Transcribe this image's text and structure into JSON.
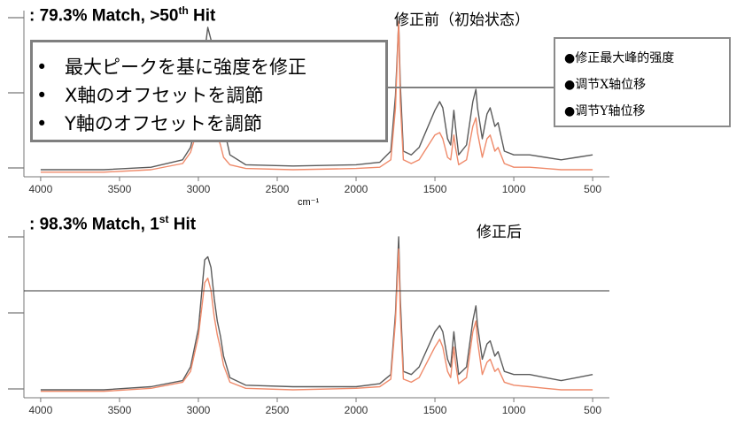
{
  "texts": {
    "top_title": ": 79.3% Match,  >50",
    "top_title_sup": "th",
    "top_title_end": " Hit",
    "bottom_title": ":  98.3% Match, 1",
    "bottom_title_sup": "st",
    "bottom_title_end": " Hit",
    "label_before": "修正前（初始状态）",
    "label_after": "修正后",
    "unit": "cm⁻¹",
    "bullet_symbol": "•",
    "box_ja": [
      "最大ピークを基に強度を修正",
      "X軸のオフセットを調節",
      "Y軸のオフセットを調節"
    ],
    "box_cn": [
      "●修正最大峰的强度",
      "●调节X轴位移",
      "●调节Y轴位移"
    ]
  },
  "colors": {
    "reference_spectrum": "#5b5b5b",
    "sample_spectrum": "#ef8a6a",
    "axis": "#777777",
    "box_border": "#7f7f7f"
  },
  "chart_data": [
    {
      "type": "line",
      "title": ": 79.3% Match,  >50th Hit",
      "xlabel": "cm⁻¹",
      "x_reversed": true,
      "xlim": [
        4050,
        450
      ],
      "xticks": [
        4000,
        3500,
        3000,
        2500,
        2000,
        1500,
        1000,
        500
      ],
      "series": [
        {
          "color": "#5b5b5b",
          "x": [
            4000,
            3600,
            3300,
            3100,
            3050,
            3000,
            2960,
            2940,
            2920,
            2900,
            2880,
            2860,
            2840,
            2800,
            2700,
            2400,
            2000,
            1850,
            1780,
            1750,
            1730,
            1720,
            1700,
            1650,
            1600,
            1500,
            1470,
            1450,
            1420,
            1400,
            1380,
            1370,
            1350,
            1300,
            1260,
            1240,
            1230,
            1200,
            1170,
            1150,
            1120,
            1100,
            1060,
            1000,
            900,
            800,
            700,
            600,
            500
          ],
          "y": [
            0.0,
            0.0,
            0.02,
            0.08,
            0.18,
            0.45,
            0.95,
            1.15,
            1.05,
            0.8,
            0.62,
            0.55,
            0.35,
            0.12,
            0.04,
            0.03,
            0.04,
            0.06,
            0.15,
            0.6,
            1.2,
            0.7,
            0.15,
            0.12,
            0.18,
            0.48,
            0.55,
            0.5,
            0.25,
            0.2,
            0.48,
            0.35,
            0.12,
            0.2,
            0.55,
            0.65,
            0.5,
            0.25,
            0.45,
            0.5,
            0.35,
            0.38,
            0.15,
            0.12,
            0.12,
            0.1,
            0.08,
            0.1,
            0.12
          ]
        },
        {
          "color": "#ef8a6a",
          "x": [
            4000,
            3600,
            3300,
            3100,
            3050,
            3000,
            2960,
            2940,
            2920,
            2900,
            2880,
            2860,
            2840,
            2800,
            2700,
            2400,
            2000,
            1850,
            1780,
            1750,
            1730,
            1720,
            1700,
            1650,
            1600,
            1500,
            1470,
            1450,
            1420,
            1400,
            1380,
            1370,
            1350,
            1300,
            1260,
            1240,
            1230,
            1200,
            1170,
            1150,
            1120,
            1100,
            1060,
            1000,
            900,
            800,
            700,
            600,
            500
          ],
          "y": [
            -0.02,
            -0.02,
            0.0,
            0.05,
            0.14,
            0.35,
            0.5,
            0.55,
            0.52,
            0.38,
            0.28,
            0.2,
            0.1,
            0.04,
            0.01,
            0.0,
            0.01,
            0.02,
            0.08,
            0.5,
            1.2,
            0.55,
            0.08,
            0.05,
            0.08,
            0.28,
            0.3,
            0.25,
            0.1,
            0.08,
            0.28,
            0.18,
            0.04,
            0.08,
            0.35,
            0.42,
            0.3,
            0.1,
            0.25,
            0.28,
            0.15,
            0.18,
            0.05,
            0.02,
            0.02,
            0.01,
            0.0,
            0.0,
            0.0
          ]
        }
      ]
    },
    {
      "type": "line",
      "title": ":  98.3% Match, 1st Hit",
      "x_reversed": true,
      "xlim": [
        4050,
        450
      ],
      "xticks": [
        4000,
        3500,
        3000,
        2500,
        2000,
        1500,
        1000,
        500
      ],
      "series": [
        {
          "color": "#5b5b5b",
          "x": [
            4000,
            3600,
            3300,
            3100,
            3050,
            3000,
            2960,
            2940,
            2920,
            2900,
            2880,
            2860,
            2840,
            2800,
            2700,
            2400,
            2000,
            1850,
            1780,
            1750,
            1730,
            1720,
            1700,
            1650,
            1600,
            1500,
            1470,
            1450,
            1420,
            1400,
            1380,
            1370,
            1350,
            1300,
            1260,
            1240,
            1230,
            1200,
            1170,
            1150,
            1120,
            1100,
            1060,
            1000,
            900,
            800,
            700,
            600,
            500
          ],
          "y": [
            0.0,
            0.0,
            0.02,
            0.06,
            0.15,
            0.4,
            0.85,
            0.87,
            0.8,
            0.6,
            0.45,
            0.35,
            0.22,
            0.08,
            0.03,
            0.02,
            0.02,
            0.04,
            0.1,
            0.5,
            1.0,
            0.6,
            0.12,
            0.1,
            0.15,
            0.38,
            0.42,
            0.38,
            0.2,
            0.15,
            0.38,
            0.28,
            0.1,
            0.15,
            0.45,
            0.55,
            0.42,
            0.2,
            0.3,
            0.32,
            0.22,
            0.25,
            0.12,
            0.1,
            0.1,
            0.08,
            0.06,
            0.08,
            0.1
          ]
        },
        {
          "color": "#ef8a6a",
          "x": [
            4000,
            3600,
            3300,
            3100,
            3050,
            3000,
            2960,
            2940,
            2920,
            2900,
            2880,
            2860,
            2840,
            2800,
            2700,
            2400,
            2000,
            1850,
            1780,
            1750,
            1730,
            1720,
            1700,
            1650,
            1600,
            1500,
            1470,
            1450,
            1420,
            1400,
            1380,
            1370,
            1350,
            1300,
            1260,
            1240,
            1230,
            1200,
            1170,
            1150,
            1120,
            1100,
            1060,
            1000,
            900,
            800,
            700,
            600,
            500
          ],
          "y": [
            -0.01,
            -0.01,
            0.01,
            0.05,
            0.12,
            0.35,
            0.7,
            0.73,
            0.65,
            0.48,
            0.36,
            0.27,
            0.16,
            0.05,
            0.01,
            0.0,
            0.01,
            0.02,
            0.07,
            0.45,
            0.92,
            0.5,
            0.07,
            0.05,
            0.08,
            0.28,
            0.33,
            0.28,
            0.12,
            0.08,
            0.28,
            0.18,
            0.04,
            0.08,
            0.38,
            0.45,
            0.32,
            0.1,
            0.18,
            0.2,
            0.12,
            0.14,
            0.05,
            0.03,
            0.02,
            0.01,
            0.0,
            0.0,
            0.0
          ]
        }
      ]
    }
  ]
}
